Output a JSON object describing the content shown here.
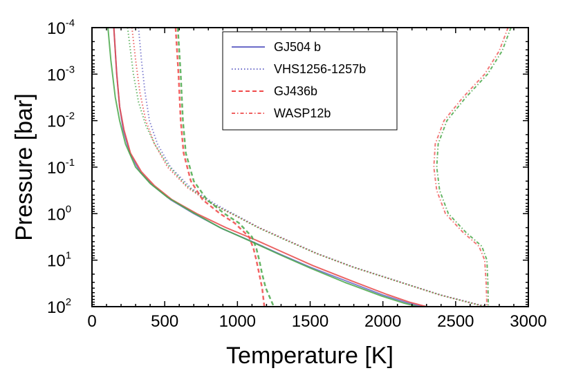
{
  "chart_data": {
    "type": "line",
    "xlabel": "Temperature [K]",
    "ylabel": "Pressure [bar]",
    "xlim": [
      0,
      3000
    ],
    "ylim_log10": [
      -4,
      2
    ],
    "y_inverted": true,
    "x_ticks": [
      0,
      500,
      1000,
      1500,
      2000,
      2500,
      3000
    ],
    "x_tick_labels": [
      "0",
      "500",
      "1000",
      "1500",
      "2000",
      "2500",
      "3000"
    ],
    "y_ticks_log10": [
      -4,
      -3,
      -2,
      -1,
      0,
      1,
      2
    ],
    "y_tick_labels": [
      {
        "base": "10",
        "exp": "-4"
      },
      {
        "base": "10",
        "exp": "-3"
      },
      {
        "base": "10",
        "exp": "-2"
      },
      {
        "base": "10",
        "exp": "-1"
      },
      {
        "base": "10",
        "exp": "0"
      },
      {
        "base": "10",
        "exp": "1"
      },
      {
        "base": "10",
        "exp": "2"
      }
    ],
    "legend_position": "top-center",
    "legend": [
      {
        "label": "GJ504 b",
        "style": "solid",
        "color": "#6a6ac8"
      },
      {
        "label": "VHS1256-1257b",
        "style": "dotted",
        "color": "#6a6ac8"
      },
      {
        "label": "GJ436b",
        "style": "dashed",
        "color": "#f04848"
      },
      {
        "label": "WASP12b",
        "style": "dashdot",
        "color": "#f06060"
      }
    ],
    "series": [
      {
        "name": "GJ504 b",
        "style": "solid",
        "color": "#6a6ac8",
        "width": 2,
        "points": [
          [
            150,
            -4
          ],
          [
            170,
            -3
          ],
          [
            190,
            -2.3
          ],
          [
            215,
            -1.8
          ],
          [
            260,
            -1.3
          ],
          [
            330,
            -0.9
          ],
          [
            420,
            -0.6
          ],
          [
            540,
            -0.3
          ],
          [
            700,
            0
          ],
          [
            900,
            0.33
          ],
          [
            1100,
            0.6
          ],
          [
            1300,
            0.88
          ],
          [
            1500,
            1.15
          ],
          [
            1750,
            1.45
          ],
          [
            2000,
            1.75
          ],
          [
            2150,
            1.9
          ],
          [
            2270,
            2
          ]
        ]
      },
      {
        "name": "GJ504 b (model 2)",
        "style": "solid",
        "color": "#e84848",
        "width": 2,
        "points": [
          [
            150,
            -4
          ],
          [
            170,
            -3
          ],
          [
            190,
            -2.3
          ],
          [
            220,
            -1.8
          ],
          [
            265,
            -1.3
          ],
          [
            340,
            -0.9
          ],
          [
            430,
            -0.6
          ],
          [
            550,
            -0.3
          ],
          [
            720,
            0
          ],
          [
            920,
            0.3
          ],
          [
            1120,
            0.56
          ],
          [
            1320,
            0.84
          ],
          [
            1520,
            1.12
          ],
          [
            1780,
            1.44
          ],
          [
            2030,
            1.74
          ],
          [
            2180,
            1.9
          ],
          [
            2300,
            2
          ]
        ]
      },
      {
        "name": "GJ504 b (model 3)",
        "style": "solid",
        "color": "#4aa84a",
        "width": 2,
        "points": [
          [
            110,
            -4
          ],
          [
            130,
            -3.3
          ],
          [
            160,
            -2.5
          ],
          [
            190,
            -2
          ],
          [
            230,
            -1.5
          ],
          [
            300,
            -1
          ],
          [
            400,
            -0.65
          ],
          [
            520,
            -0.35
          ],
          [
            680,
            -0.05
          ],
          [
            880,
            0.3
          ],
          [
            1080,
            0.58
          ],
          [
            1290,
            0.88
          ],
          [
            1500,
            1.17
          ],
          [
            1740,
            1.48
          ],
          [
            1990,
            1.77
          ],
          [
            2140,
            1.92
          ],
          [
            2240,
            2
          ]
        ]
      },
      {
        "name": "VHS1256-1257b",
        "style": "dotted",
        "color": "#6a6ac8",
        "width": 2,
        "points": [
          [
            320,
            -4
          ],
          [
            340,
            -3.3
          ],
          [
            365,
            -2.6
          ],
          [
            395,
            -2
          ],
          [
            450,
            -1.5
          ],
          [
            540,
            -1
          ],
          [
            680,
            -0.55
          ],
          [
            850,
            -0.2
          ],
          [
            1000,
            0.05
          ],
          [
            1150,
            0.3
          ],
          [
            1350,
            0.58
          ],
          [
            1550,
            0.86
          ],
          [
            1800,
            1.15
          ],
          [
            2100,
            1.45
          ],
          [
            2400,
            1.75
          ],
          [
            2650,
            1.95
          ],
          [
            2720,
            2
          ]
        ]
      },
      {
        "name": "VHS1256-1257b (model 2)",
        "style": "dotted",
        "color": "#e84848",
        "width": 2,
        "points": [
          [
            275,
            -4
          ],
          [
            300,
            -3.3
          ],
          [
            330,
            -2.6
          ],
          [
            370,
            -2
          ],
          [
            430,
            -1.5
          ],
          [
            520,
            -1
          ],
          [
            660,
            -0.55
          ],
          [
            830,
            -0.2
          ],
          [
            990,
            0.05
          ],
          [
            1145,
            0.3
          ],
          [
            1345,
            0.58
          ],
          [
            1545,
            0.86
          ],
          [
            1795,
            1.15
          ],
          [
            2095,
            1.45
          ],
          [
            2395,
            1.75
          ],
          [
            2640,
            1.95
          ],
          [
            2710,
            2
          ]
        ]
      },
      {
        "name": "VHS1256-1257b (model 3)",
        "style": "dotted",
        "color": "#4aa84a",
        "width": 2,
        "points": [
          [
            245,
            -4
          ],
          [
            265,
            -3.5
          ],
          [
            285,
            -3
          ],
          [
            320,
            -2.4
          ],
          [
            370,
            -1.9
          ],
          [
            430,
            -1.5
          ],
          [
            520,
            -1.05
          ],
          [
            650,
            -0.6
          ],
          [
            820,
            -0.22
          ],
          [
            980,
            0.03
          ],
          [
            1140,
            0.3
          ],
          [
            1340,
            0.58
          ],
          [
            1545,
            0.86
          ],
          [
            1795,
            1.15
          ],
          [
            2095,
            1.45
          ],
          [
            2395,
            1.75
          ],
          [
            2640,
            1.95
          ],
          [
            2705,
            2
          ]
        ]
      },
      {
        "name": "GJ436b",
        "style": "dashed",
        "color": "#f04848",
        "width": 2.5,
        "points": [
          [
            575,
            -4
          ],
          [
            595,
            -3
          ],
          [
            610,
            -2
          ],
          [
            630,
            -1.3
          ],
          [
            680,
            -0.7
          ],
          [
            760,
            -0.3
          ],
          [
            880,
            0
          ],
          [
            980,
            0.2
          ],
          [
            1080,
            0.5
          ],
          [
            1110,
            0.75
          ],
          [
            1130,
            1
          ],
          [
            1150,
            1.3
          ],
          [
            1170,
            1.6
          ],
          [
            1185,
            2
          ]
        ]
      },
      {
        "name": "GJ436b (model 2)",
        "style": "dashed",
        "color": "#4aa84a",
        "width": 2.5,
        "points": [
          [
            590,
            -4
          ],
          [
            610,
            -3
          ],
          [
            625,
            -2
          ],
          [
            645,
            -1.3
          ],
          [
            700,
            -0.7
          ],
          [
            790,
            -0.3
          ],
          [
            910,
            0
          ],
          [
            1010,
            0.2
          ],
          [
            1100,
            0.5
          ],
          [
            1130,
            0.75
          ],
          [
            1150,
            1
          ],
          [
            1170,
            1.3
          ],
          [
            1195,
            1.6
          ],
          [
            1250,
            2
          ]
        ]
      },
      {
        "name": "WASP12b",
        "style": "dashdot",
        "color": "#f06060",
        "width": 2,
        "points": [
          [
            2860,
            -4
          ],
          [
            2800,
            -3.5
          ],
          [
            2700,
            -3
          ],
          [
            2550,
            -2.5
          ],
          [
            2420,
            -2
          ],
          [
            2360,
            -1.5
          ],
          [
            2350,
            -1
          ],
          [
            2370,
            -0.5
          ],
          [
            2430,
            0
          ],
          [
            2550,
            0.4
          ],
          [
            2660,
            0.7
          ],
          [
            2700,
            1
          ],
          [
            2710,
            1.5
          ],
          [
            2715,
            2
          ]
        ]
      },
      {
        "name": "WASP12b (model 2)",
        "style": "dashdot",
        "color": "#4aa84a",
        "width": 2,
        "points": [
          [
            2880,
            -4
          ],
          [
            2820,
            -3.5
          ],
          [
            2720,
            -3
          ],
          [
            2570,
            -2.5
          ],
          [
            2440,
            -2
          ],
          [
            2380,
            -1.5
          ],
          [
            2370,
            -1
          ],
          [
            2390,
            -0.5
          ],
          [
            2450,
            0
          ],
          [
            2570,
            0.4
          ],
          [
            2680,
            0.7
          ],
          [
            2715,
            1
          ],
          [
            2722,
            1.5
          ],
          [
            2725,
            2
          ]
        ]
      }
    ]
  }
}
